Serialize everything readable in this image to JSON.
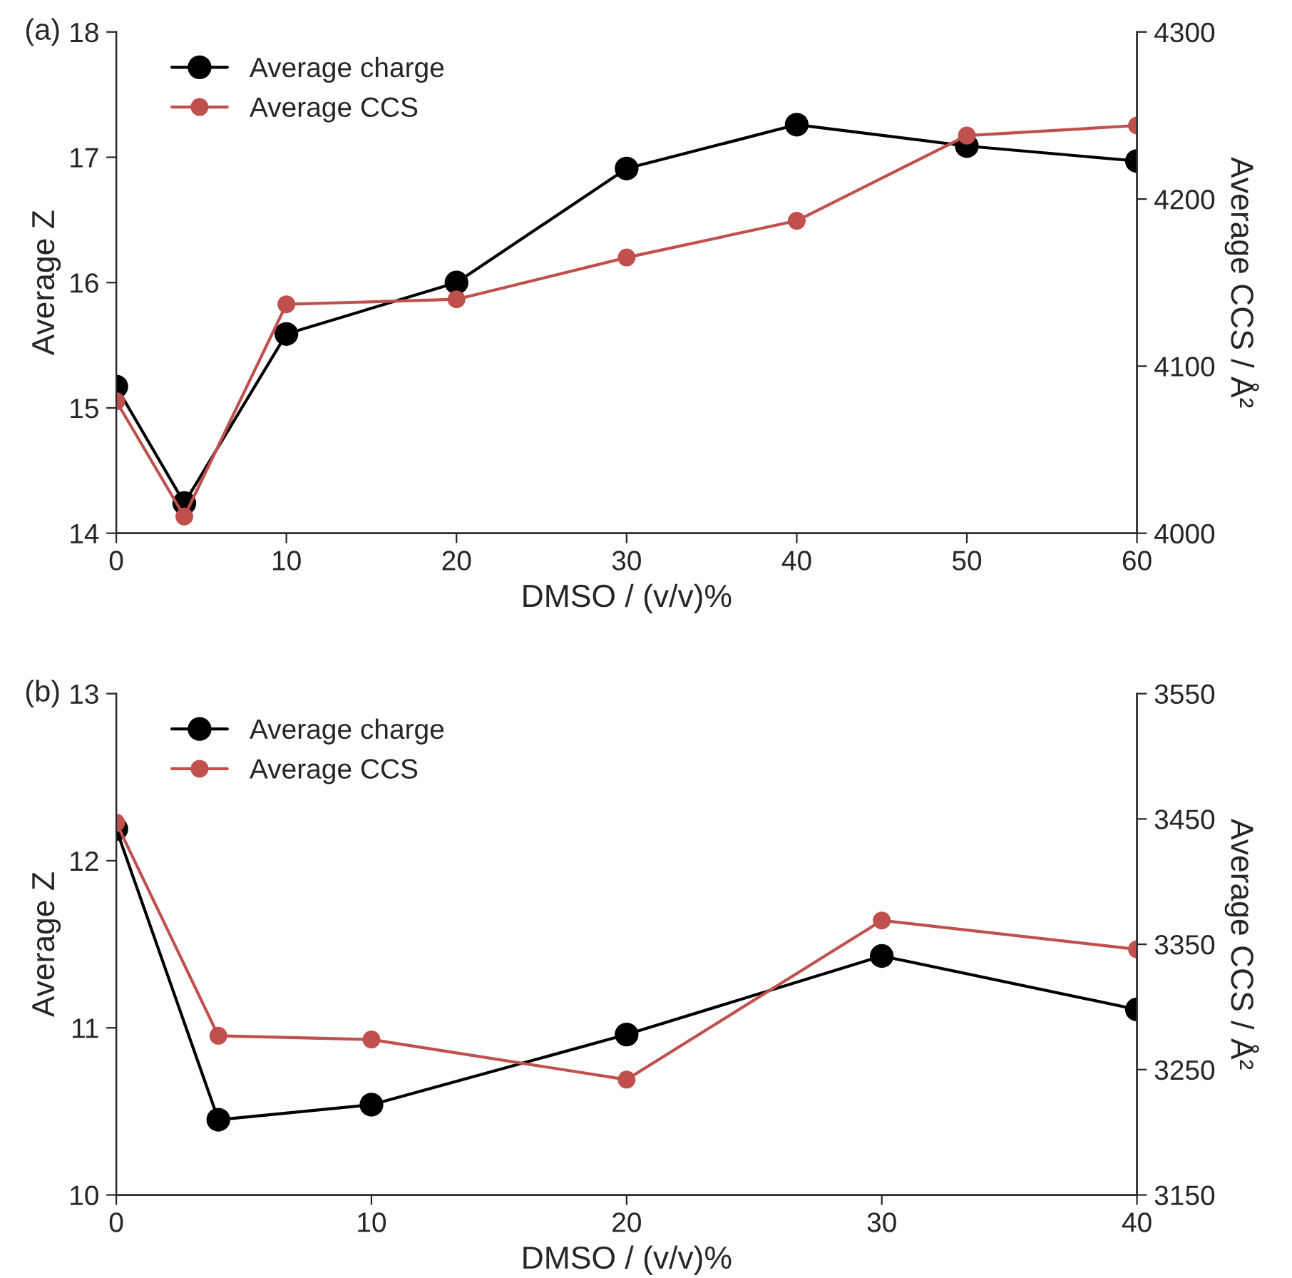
{
  "chart_data": [
    {
      "type": "line",
      "annotations": [
        "(a)"
      ],
      "xlabel": "DMSO / (v/v)%",
      "ylabel": "Average Z",
      "y2label": "Average CCS / Å²",
      "xlim": [
        0,
        60
      ],
      "xticks": [
        0,
        10,
        20,
        30,
        40,
        50,
        60
      ],
      "ylim": [
        14,
        18
      ],
      "yticks": [
        14,
        15,
        16,
        17,
        18
      ],
      "y2lim": [
        4000,
        4300
      ],
      "y2ticks": [
        4000,
        4100,
        4200,
        4300
      ],
      "x": [
        0,
        4,
        10,
        20,
        30,
        40,
        50,
        60
      ],
      "marker": "circle",
      "grid": false,
      "legend": "top left",
      "series": [
        {
          "name": "Average charge",
          "color": "#000000",
          "values": [
            15.17,
            14.24,
            15.59,
            16.0,
            16.91,
            17.26,
            17.09,
            16.97
          ]
        },
        {
          "name": "Average CCS",
          "color": "#c0504d",
          "axis": "y2",
          "values": [
            4079,
            4010,
            4137,
            4140,
            4165,
            4187,
            4238,
            4244
          ]
        }
      ]
    },
    {
      "type": "line",
      "annotations": [
        "(b)"
      ],
      "xlabel": "DMSO / (v/v)%",
      "ylabel": "Average Z",
      "y2label": "Average CCS / Å²",
      "xlim": [
        0,
        40
      ],
      "xticks": [
        0,
        10,
        20,
        30,
        40
      ],
      "ylim": [
        10,
        13
      ],
      "yticks": [
        10,
        11,
        12,
        13
      ],
      "y2lim": [
        3150,
        3550
      ],
      "y2ticks": [
        3150,
        3250,
        3350,
        3450,
        3550
      ],
      "x": [
        0,
        4,
        10,
        20,
        30,
        40
      ],
      "marker": "circle",
      "grid": false,
      "legend": "top left",
      "series": [
        {
          "name": "Average charge",
          "color": "#000000",
          "values": [
            12.19,
            10.45,
            10.54,
            10.96,
            11.43,
            11.11
          ]
        },
        {
          "name": "Average CCS",
          "color": "#c0504d",
          "axis": "y2",
          "values": [
            3447,
            3277,
            3274,
            3242,
            3369,
            3346
          ]
        }
      ]
    }
  ]
}
